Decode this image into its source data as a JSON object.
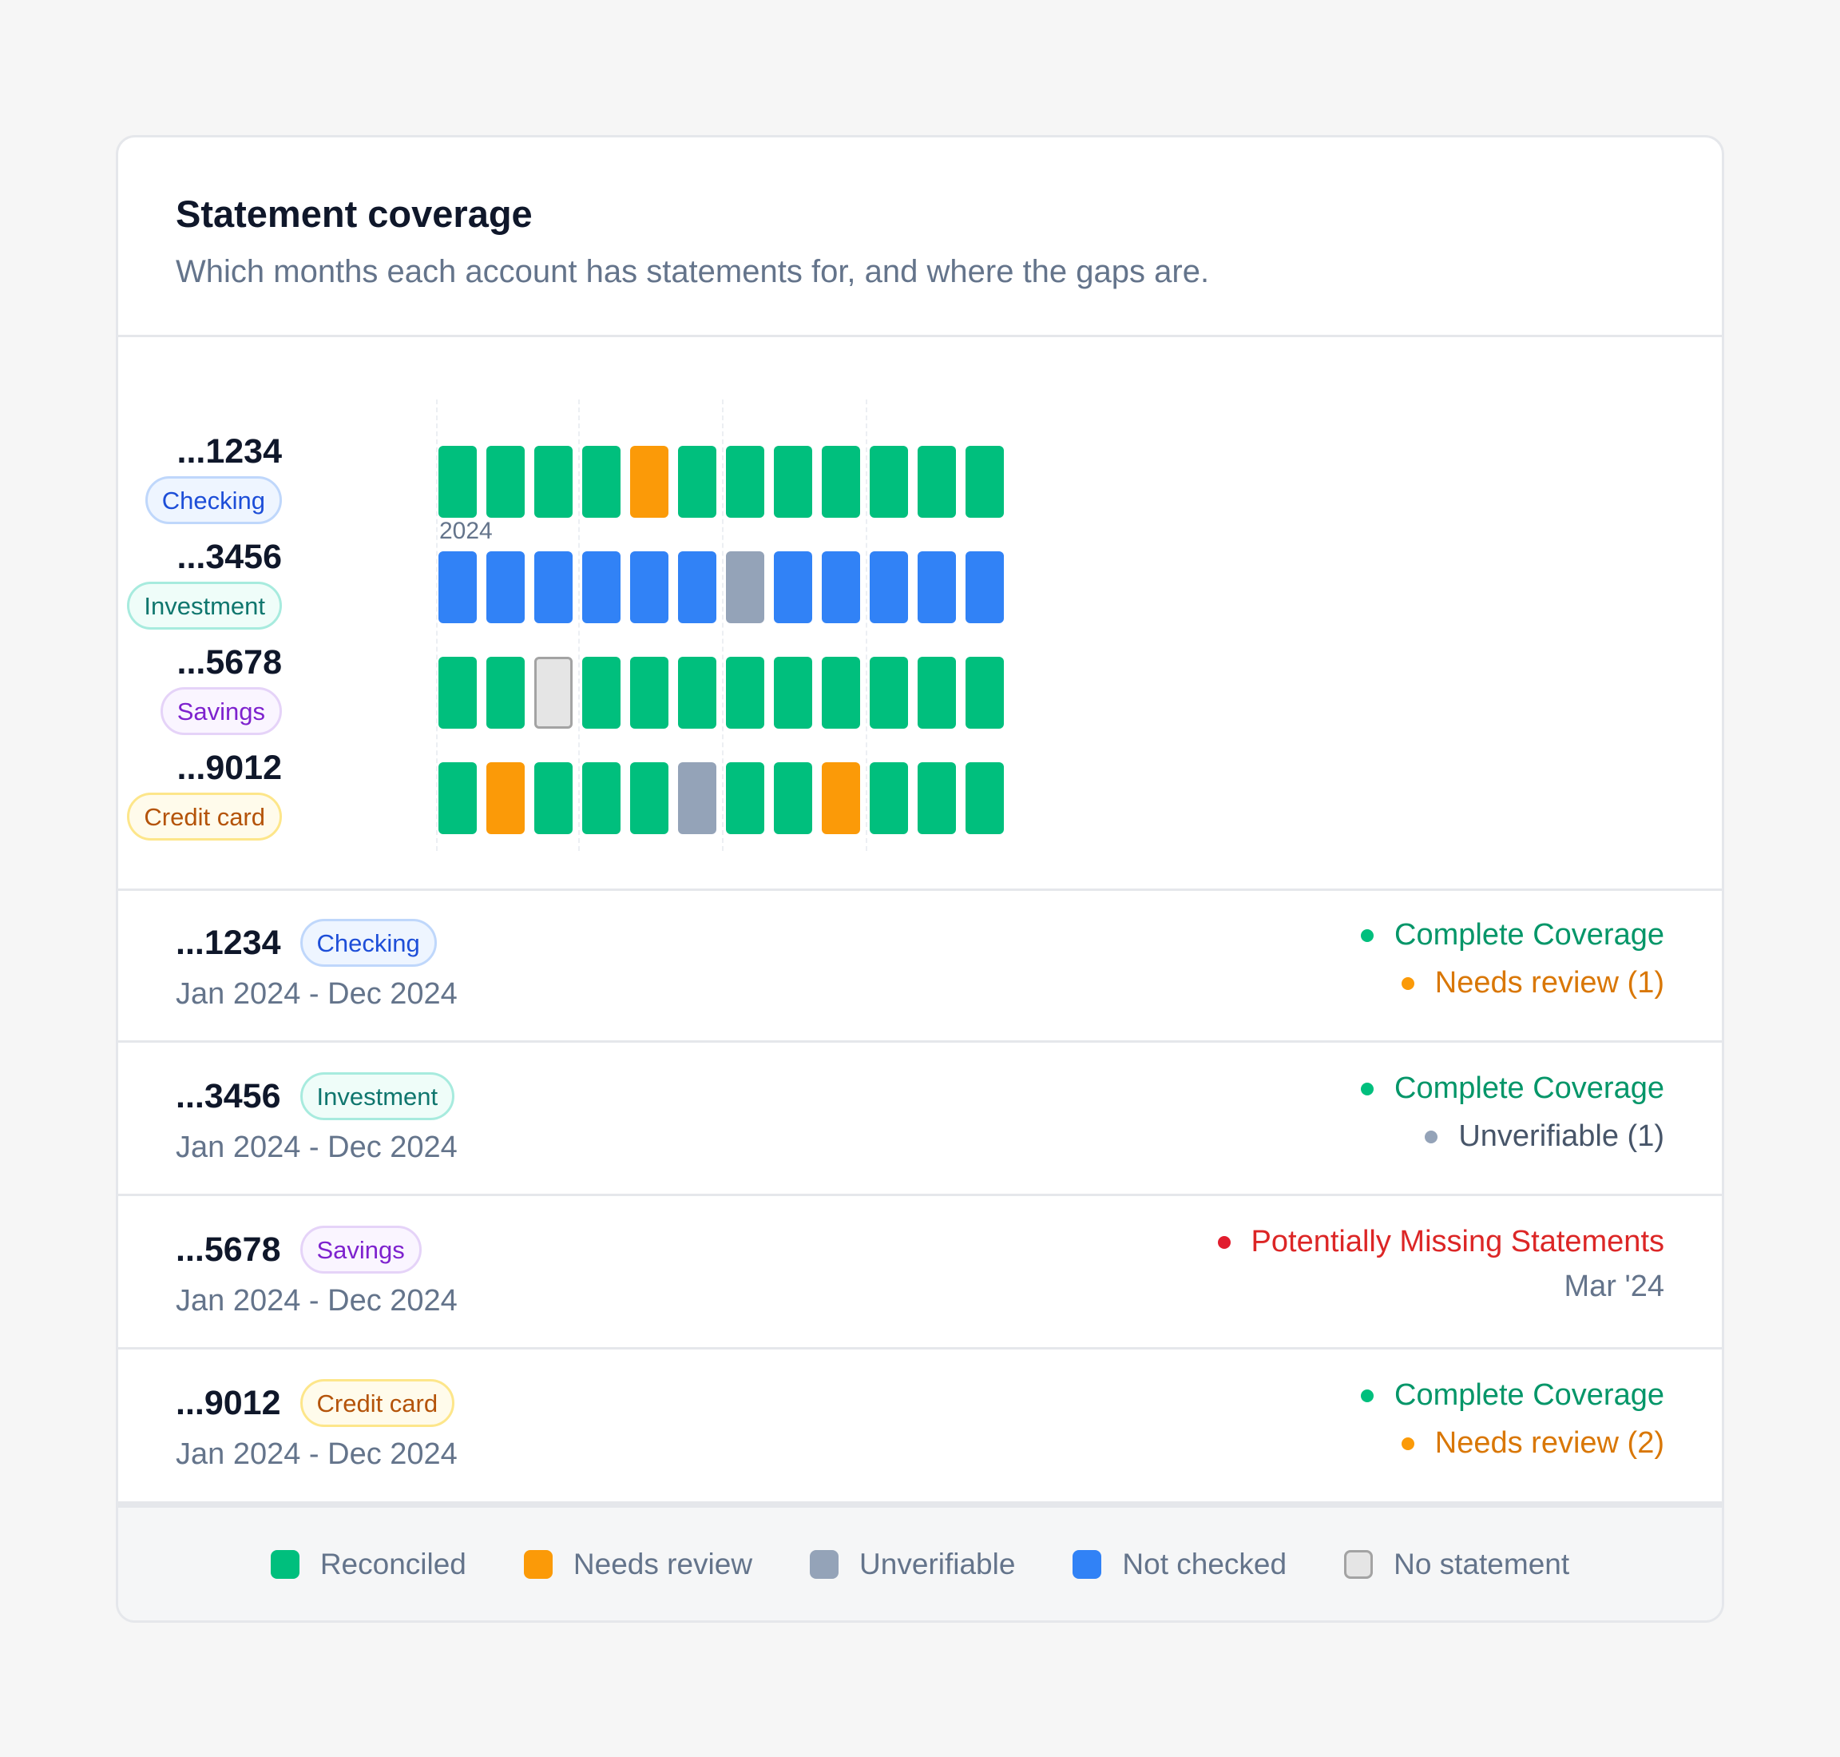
{
  "header": {
    "title": "Statement coverage",
    "subtitle": "Which months each account has statements for, and where the gaps are."
  },
  "heatmap": {
    "year": "2024",
    "rows": [
      {
        "account": "...1234",
        "type": "Checking",
        "months": [
          "reconciled",
          "reconciled",
          "reconciled",
          "reconciled",
          "needs-review",
          "reconciled",
          "reconciled",
          "reconciled",
          "reconciled",
          "reconciled",
          "reconciled",
          "reconciled"
        ]
      },
      {
        "account": "...3456",
        "type": "Investment",
        "months": [
          "not-checked",
          "not-checked",
          "not-checked",
          "not-checked",
          "not-checked",
          "not-checked",
          "unverifiable",
          "not-checked",
          "not-checked",
          "not-checked",
          "not-checked",
          "not-checked"
        ]
      },
      {
        "account": "...5678",
        "type": "Savings",
        "months": [
          "reconciled",
          "reconciled",
          "no-statement",
          "reconciled",
          "reconciled",
          "reconciled",
          "reconciled",
          "reconciled",
          "reconciled",
          "reconciled",
          "reconciled",
          "reconciled"
        ]
      },
      {
        "account": "...9012",
        "type": "Credit card",
        "months": [
          "reconciled",
          "needs-review",
          "reconciled",
          "reconciled",
          "reconciled",
          "unverifiable",
          "reconciled",
          "reconciled",
          "needs-review",
          "reconciled",
          "reconciled",
          "reconciled"
        ]
      }
    ]
  },
  "accounts": [
    {
      "account": "...1234",
      "type": "Checking",
      "range": "Jan 2024 - Dec 2024",
      "status_primary": "Complete Coverage",
      "status_secondary": "Needs review (1)"
    },
    {
      "account": "...3456",
      "type": "Investment",
      "range": "Jan 2024 - Dec 2024",
      "status_primary": "Complete Coverage",
      "status_secondary": "Unverifiable (1)"
    },
    {
      "account": "...5678",
      "type": "Savings",
      "range": "Jan 2024 - Dec 2024",
      "status_primary": "Potentially Missing Statements",
      "status_secondary": "Mar '24"
    },
    {
      "account": "...9012",
      "type": "Credit card",
      "range": "Jan 2024 - Dec 2024",
      "status_primary": "Complete Coverage",
      "status_secondary": "Needs review (2)"
    }
  ],
  "legend": [
    {
      "key": "reconciled",
      "label": "Reconciled"
    },
    {
      "key": "needs-review",
      "label": "Needs review"
    },
    {
      "key": "unverifiable",
      "label": "Unverifiable"
    },
    {
      "key": "not-checked",
      "label": "Not checked"
    },
    {
      "key": "no-statement",
      "label": "No statement"
    }
  ],
  "colors": {
    "reconciled": "#00bf7d",
    "needs-review": "#fb9a08",
    "unverifiable": "#94a3b8",
    "not-checked": "#3182f6",
    "no-statement": "#e5e5e5",
    "missing": "#dc2626"
  }
}
